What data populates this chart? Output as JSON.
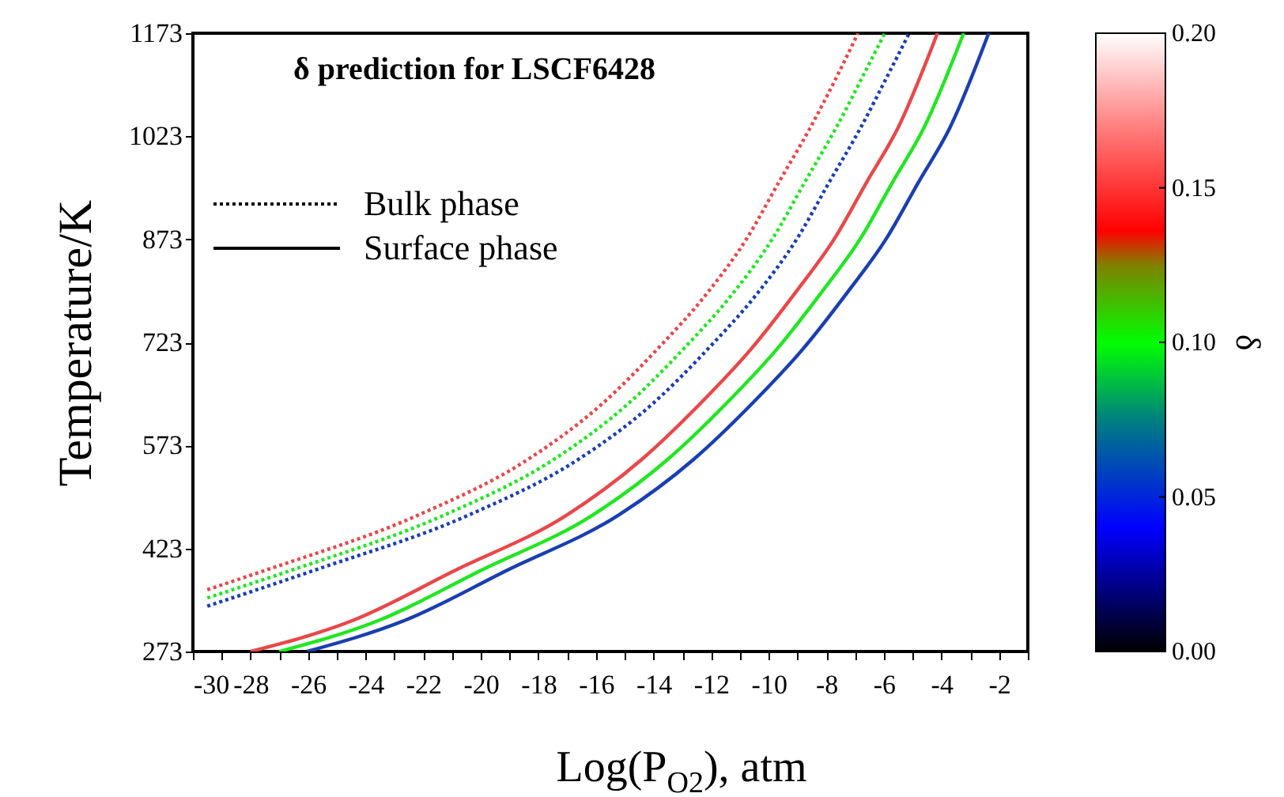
{
  "chart_data": {
    "type": "line",
    "title": "δ prediction for LSCF6428",
    "xlabel": "Log(P$_{O2}$), atm",
    "ylabel": "Temperature/K",
    "xlim": [
      -30,
      -1
    ],
    "ylim": [
      273,
      1173
    ],
    "xticks": [
      -30,
      {
        "value": -29,
        "label": null
      },
      -28,
      {
        "value": -27,
        "label": null
      },
      -26,
      {
        "value": -25,
        "label": null
      },
      -24,
      {
        "value": -23,
        "label": null
      },
      -22,
      {
        "value": -21,
        "label": null
      },
      -20,
      {
        "value": -19,
        "label": null
      },
      -18,
      {
        "value": -17,
        "label": null
      },
      -16,
      {
        "value": -15,
        "label": null
      },
      -14,
      {
        "value": -13,
        "label": null
      },
      -12,
      {
        "value": -11,
        "label": null
      },
      -10,
      {
        "value": -9,
        "label": null
      },
      -8,
      {
        "value": -7,
        "label": null
      },
      -6,
      {
        "value": -5,
        "label": null
      },
      -4,
      {
        "value": -3,
        "label": null
      },
      -2,
      {
        "value": -1,
        "label": null
      }
    ],
    "yticks": [
      273,
      423,
      573,
      723,
      873,
      1023,
      1173
    ],
    "grid": false,
    "clabel": "δ",
    "clim": [
      0,
      0.2
    ],
    "cticks": [
      {
        "value": 0,
        "label": "0.00"
      },
      0.05,
      {
        "value": 0.1,
        "label": "0.10"
      },
      0.15,
      {
        "value": 0.2,
        "label": "0.20"
      }
    ],
    "annotations": [
      "Bulk phase",
      "Surface phase"
    ],
    "series": [
      {
        "color": "#e8484a",
        "line_style": "dotted",
        "x": [
          -29.5,
          -27.5,
          -22.15,
          -18.35,
          -15.8,
          -13.85,
          -12.15,
          -10.75,
          -9.65,
          -8.55,
          -7.55,
          -6.9
        ],
        "values": [
          363,
          391,
          472,
          553,
          633,
          714,
          794,
          875,
          956,
          1036,
          1117,
          1173
        ]
      },
      {
        "color": "#22e622",
        "line_style": "dotted",
        "x": [
          -29.5,
          -26.6,
          -21.25,
          -17.45,
          -14.9,
          -12.95,
          -11.25,
          -9.85,
          -8.75,
          -7.65,
          -6.65,
          -5.97
        ],
        "values": [
          351,
          391,
          472,
          553,
          633,
          714,
          794,
          875,
          956,
          1036,
          1117,
          1173
        ]
      },
      {
        "color": "#1a3fb0",
        "line_style": "dotted",
        "x": [
          -29.5,
          -25.8,
          -20.4,
          -16.6,
          -14.05,
          -12.1,
          -10.4,
          -9.0,
          -7.9,
          -6.8,
          -5.8,
          -5.12
        ],
        "values": [
          339,
          391,
          472,
          553,
          633,
          714,
          794,
          875,
          956,
          1036,
          1117,
          1173
        ]
      },
      {
        "color": "#e8484a",
        "line_style": "solid",
        "x": [
          -28.0,
          -24.4,
          -20.9,
          -17.0,
          -14.4,
          -12.4,
          -10.6,
          -9.1,
          -7.7,
          -6.6,
          -5.5,
          -4.14
        ],
        "values": [
          273,
          319,
          391,
          472,
          553,
          633,
          714,
          794,
          875,
          956,
          1036,
          1173
        ]
      },
      {
        "color": "#22e622",
        "line_style": "solid",
        "x": [
          -27.0,
          -23.5,
          -20.0,
          -16.1,
          -13.5,
          -11.5,
          -9.7,
          -8.2,
          -6.8,
          -5.7,
          -4.6,
          -3.23
        ],
        "values": [
          273,
          319,
          391,
          472,
          553,
          633,
          714,
          794,
          875,
          956,
          1036,
          1173
        ]
      },
      {
        "color": "#1a3fb0",
        "line_style": "solid",
        "x": [
          -26.04,
          -22.6,
          -19.1,
          -15.2,
          -12.6,
          -10.6,
          -8.8,
          -7.3,
          -5.9,
          -4.8,
          -3.7,
          -2.36
        ],
        "values": [
          273,
          319,
          391,
          472,
          553,
          633,
          714,
          794,
          875,
          956,
          1036,
          1173
        ]
      }
    ]
  }
}
